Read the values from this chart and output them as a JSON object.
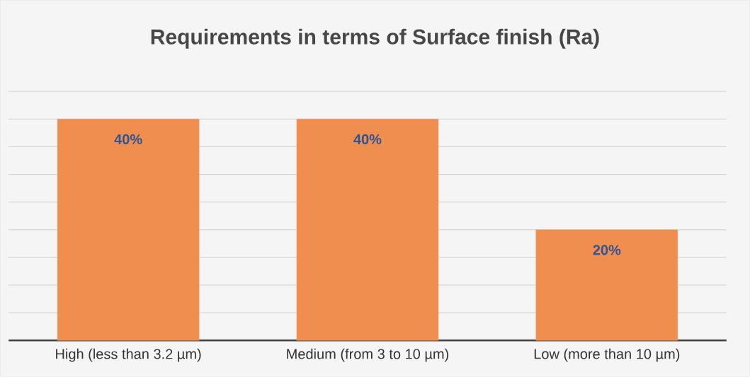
{
  "chart_data": {
    "type": "bar",
    "title": "Requirements in terms of Surface finish (Ra)",
    "categories": [
      "High (less than 3.2 µm)",
      "Medium (from 3 to 10 µm)",
      "Low  (more than 10 µm)"
    ],
    "values": [
      40,
      40,
      20
    ],
    "value_labels": [
      "40%",
      "40%",
      "20%"
    ],
    "color": "#ef8e4f",
    "tick_labels": "x",
    "grid": "y"
  }
}
